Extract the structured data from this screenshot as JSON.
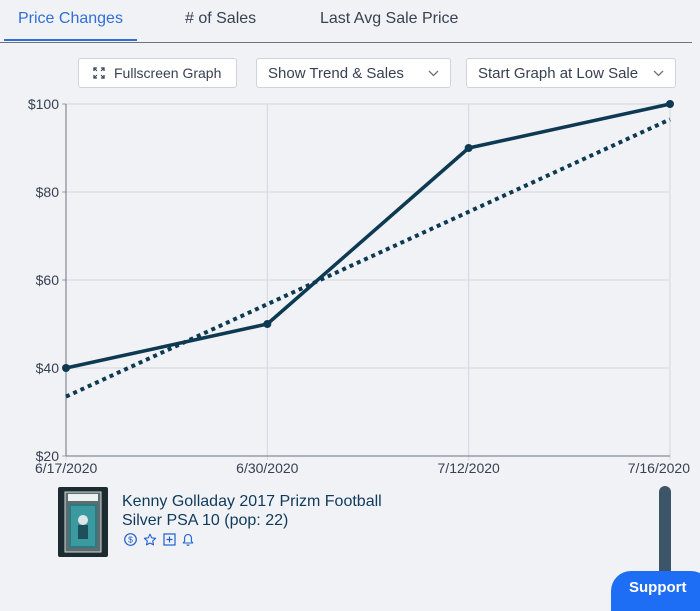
{
  "tabs": [
    {
      "label": "Price Changes",
      "active": true
    },
    {
      "label": "# of Sales",
      "active": false
    },
    {
      "label": "Last Avg Sale Price",
      "active": false
    }
  ],
  "controls": {
    "fullscreen_label": "Fullscreen Graph",
    "trend_select": "Show Trend & Sales",
    "start_select": "Start Graph at Low Sale"
  },
  "chart_data": {
    "type": "line",
    "categories": [
      "6/17/2020",
      "6/30/2020",
      "7/12/2020",
      "7/16/2020"
    ],
    "series": [
      {
        "values": [
          40,
          50,
          90,
          100
        ],
        "style": "solid",
        "color": "#0d3a52"
      },
      {
        "values": [
          33.5,
          54.5,
          75.5,
          96.5
        ],
        "style": "dotted",
        "color": "#0d3a52",
        "role": "trend"
      }
    ],
    "ytick_labels": [
      "$100",
      "$80",
      "$60",
      "$40",
      "$20"
    ],
    "ylim": [
      20,
      100
    ],
    "grid": true
  },
  "card": {
    "title": "Kenny Golladay 2017 Prizm Football Silver PSA 10 (pop: 22)",
    "icons": [
      "dollar-icon",
      "star-icon",
      "plus-square-icon",
      "bell-icon"
    ]
  },
  "support_label": "Support",
  "colors": {
    "accent": "#2f6fd6",
    "line": "#0d3a52",
    "support": "#1e6ef5"
  }
}
